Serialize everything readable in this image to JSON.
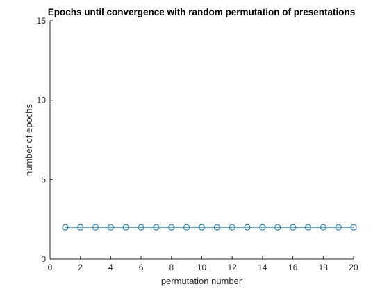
{
  "chart_data": {
    "type": "line",
    "title": "Epochs until convergence with random permutation of presentations",
    "xlabel": "permutation number",
    "ylabel": "number of epochs",
    "xlim": [
      0,
      20
    ],
    "ylim": [
      0,
      15
    ],
    "xticks": [
      "0",
      "2",
      "4",
      "6",
      "8",
      "10",
      "12",
      "14",
      "16",
      "18",
      "20"
    ],
    "yticks": [
      "0",
      "5",
      "10",
      "15"
    ],
    "grid": false,
    "marker": "circle",
    "series": [
      {
        "x": [
          1,
          2,
          3,
          4,
          5,
          6,
          7,
          8,
          9,
          10,
          11,
          12,
          13,
          14,
          15,
          16,
          17,
          18,
          19,
          20
        ],
        "values": [
          2,
          2,
          2,
          2,
          2,
          2,
          2,
          2,
          2,
          2,
          2,
          2,
          2,
          2,
          2,
          2,
          2,
          2,
          2,
          2
        ],
        "color": "#0072BD"
      }
    ]
  }
}
